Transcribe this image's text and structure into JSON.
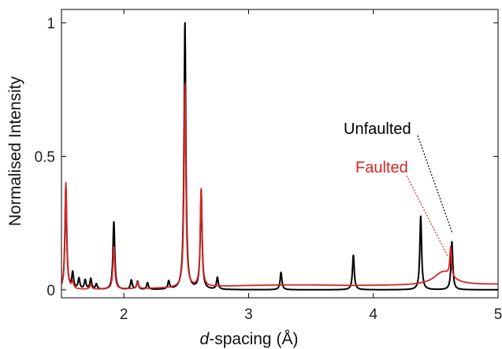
{
  "chart_data": {
    "type": "line",
    "title": "",
    "xlabel_italic": "d",
    "xlabel_rest": "-spacing (Å)",
    "ylabel": "Normalised Intensity",
    "xlim": [
      1.5,
      5
    ],
    "ylim": [
      -0.03,
      1.05
    ],
    "x_ticks": [
      2,
      3,
      4,
      5
    ],
    "x_tick_labels": [
      "2",
      "3",
      "4",
      "5"
    ],
    "y_ticks": [
      0,
      0.5,
      1
    ],
    "y_tick_labels": [
      "0",
      "0.5",
      "1"
    ],
    "grid": false,
    "legend": "annotations with dotted leader lines, upper right",
    "series": [
      {
        "name": "Unfaulted",
        "color": "#000000",
        "peaks": [
          {
            "x": 1.535,
            "y": 0.38
          },
          {
            "x": 1.59,
            "y": 0.06
          },
          {
            "x": 1.64,
            "y": 0.04
          },
          {
            "x": 1.69,
            "y": 0.035
          },
          {
            "x": 1.735,
            "y": 0.04
          },
          {
            "x": 1.78,
            "y": 0.02
          },
          {
            "x": 1.92,
            "y": 0.255
          },
          {
            "x": 2.06,
            "y": 0.035
          },
          {
            "x": 2.11,
            "y": 0.03
          },
          {
            "x": 2.19,
            "y": 0.025
          },
          {
            "x": 2.36,
            "y": 0.03
          },
          {
            "x": 2.49,
            "y": 1.0
          },
          {
            "x": 2.62,
            "y": 0.37
          },
          {
            "x": 2.75,
            "y": 0.045
          },
          {
            "x": 3.26,
            "y": 0.065
          },
          {
            "x": 3.84,
            "y": 0.13
          },
          {
            "x": 4.38,
            "y": 0.275
          },
          {
            "x": 4.63,
            "y": 0.18
          }
        ]
      },
      {
        "name": "Faulted",
        "color": "#d62728",
        "peaks": [
          {
            "x": 1.535,
            "y": 0.4
          },
          {
            "x": 1.59,
            "y": 0.025
          },
          {
            "x": 1.735,
            "y": 0.02
          },
          {
            "x": 1.92,
            "y": 0.16
          },
          {
            "x": 2.11,
            "y": 0.025
          },
          {
            "x": 2.49,
            "y": 0.765
          },
          {
            "x": 2.62,
            "y": 0.365
          },
          {
            "x": 4.62,
            "y": 0.11
          }
        ]
      }
    ]
  }
}
